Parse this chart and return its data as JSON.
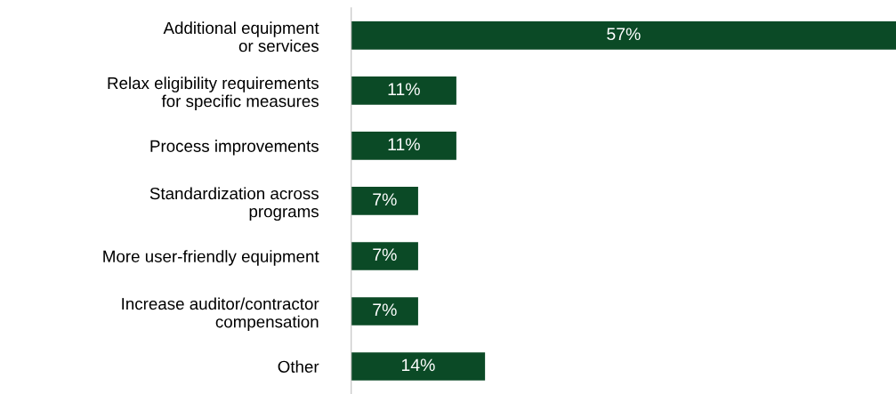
{
  "chart_data": {
    "type": "bar",
    "orientation": "horizontal",
    "categories": [
      "Additional equipment\nor services",
      "Relax eligibility requirements\nfor specific measures",
      "Process improvements",
      "Standardization across\nprograms",
      "More user-friendly equipment",
      "Increase auditor/contractor\ncompensation",
      "Other"
    ],
    "values": [
      57,
      11,
      11,
      7,
      7,
      7,
      14
    ],
    "value_labels": [
      "57%",
      "11%",
      "11%",
      "7%",
      "7%",
      "7%",
      "14%"
    ],
    "color": "#0b4a26",
    "grid": false,
    "legend": false
  }
}
